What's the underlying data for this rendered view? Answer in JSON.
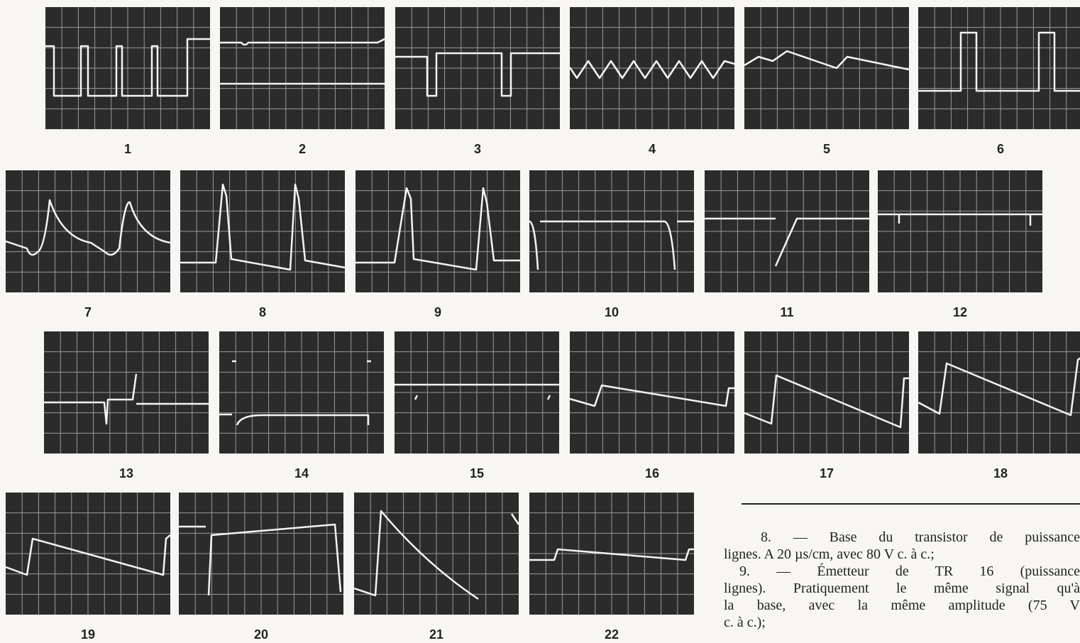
{
  "figure_labels": [
    "1",
    "2",
    "3",
    "4",
    "5",
    "6",
    "7",
    "8",
    "9",
    "10",
    "11",
    "12",
    "13",
    "14",
    "15",
    "16",
    "17",
    "18",
    "19",
    "20",
    "21",
    "22"
  ],
  "caption_lines": [
    "8. — Base du transistor de puissance",
    "lignes. A 20 µs/cm, avec 80 V c. à c.;",
    "9. — Émetteur de TR 16 (puissance",
    "lignes). Pratiquement le même signal qu'à",
    "la base, avec la même amplitude (75 V",
    "c. à c.);"
  ]
}
